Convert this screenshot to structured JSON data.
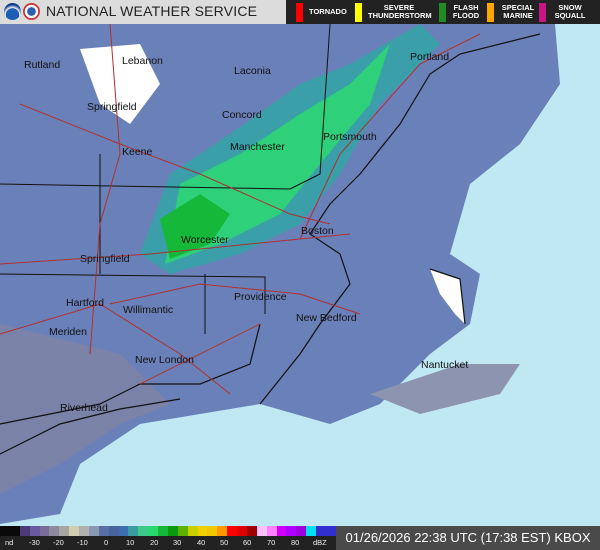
{
  "header": {
    "title": "NATIONAL WEATHER SERVICE",
    "logos": [
      "noaa-logo",
      "nws-logo"
    ]
  },
  "warnings": [
    {
      "label": "TORNADO",
      "color": "#ff0000"
    },
    {
      "label": "SEVERE THUNDERSTORM",
      "color": "#ffff00"
    },
    {
      "label": "FLASH FLOOD",
      "color": "#228b22"
    },
    {
      "label": "SPECIAL MARINE",
      "color": "#ffa500"
    },
    {
      "label": "SNOW SQUALL",
      "color": "#c71585"
    }
  ],
  "cities": [
    "Rutland",
    "Lebanon",
    "Laconia",
    "Portland",
    "Springfield",
    "Concord",
    "Keene",
    "Manchester",
    "Portsmouth",
    "Worcester",
    "Boston",
    "Springfield",
    "Hartford",
    "Providence",
    "Willimantic",
    "New Bedford",
    "Meriden",
    "New London",
    "Nantucket",
    "Riverhead"
  ],
  "scale": {
    "labels": [
      "nd",
      "-30",
      "-20",
      "-10",
      "0",
      "10",
      "20",
      "30",
      "40",
      "50",
      "60",
      "70",
      "80",
      "dBZ"
    ],
    "colors": [
      "#0a0a0a",
      "#0a0a0a",
      "#4b3a78",
      "#6a58a0",
      "#7a6e98",
      "#8e8a9e",
      "#a8a6a0",
      "#cfcfb0",
      "#b0b0b0",
      "#8a98b0",
      "#5a70a4",
      "#4a64a0",
      "#3e6eb0",
      "#3a9ea0",
      "#3ec88c",
      "#2ad870",
      "#16b83a",
      "#0a9a10",
      "#60b000",
      "#c8d000",
      "#f0d000",
      "#f0c800",
      "#ff9800",
      "#ff0000",
      "#e00000",
      "#a00000",
      "#ffc0ff",
      "#ff80ff",
      "#d000ff",
      "#b000ff",
      "#a000e0",
      "#00e0f0",
      "#3030d0",
      "#3030d0"
    ]
  },
  "timestamp": "01/26/2026 22:38 UTC (17:38 EST) KBOX"
}
